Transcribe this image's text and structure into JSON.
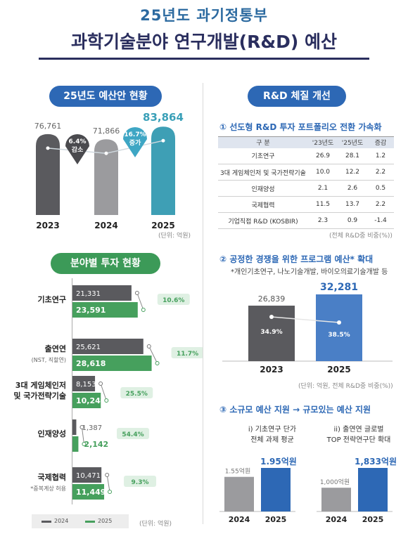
{
  "header": {
    "line1": "25년도 과기정통부",
    "line2": "과학기술분야 연구개발(R&D) 예산"
  },
  "left": {
    "pill1": "25년도 예산안 현황",
    "pill2": "분야별 투자 현황",
    "top_unit": "(단위: 억원)",
    "bottom_unit": "(단위: 억원)",
    "legend": [
      "2024",
      "2025"
    ]
  },
  "right": {
    "pill": "R&D 체질 개선",
    "s1_title": "① 선도형 R&D 투자 포트폴리오 전환 가속화",
    "s1_headers": [
      "구 분",
      "'23년도",
      "'25년도",
      "증감"
    ],
    "s1_note": "(전체 R&D중 비중(%))",
    "s2_title": "② 공정한 경쟁을 위한 프로그램 예산* 확대",
    "s2_note": "*개인기초연구, 나노기술개발, 바이오의료기술개발 등",
    "s2_unit": "(단위: 억원, 전체 R&D중 비중(%))",
    "s3_title": "③ 소규모 예산 지원 → 규모있는 예산 지원",
    "s3_sub_i": [
      "i) 기초연구 단가",
      "전체 과제 평균"
    ],
    "s3_sub_ii": [
      "ii) 출연연 글로벌",
      "TOP 전략연구단 확대"
    ]
  },
  "chart_data": [
    {
      "type": "bar",
      "title": "25년도 예산안 현황",
      "categories": [
        "2023",
        "2024",
        "2025"
      ],
      "values": [
        76761,
        71866,
        83864
      ],
      "labels": [
        "76,761",
        "71,866",
        "83,864"
      ],
      "colors": [
        "#5a5a5e",
        "#9b9b9e",
        "#3e9fb5"
      ],
      "annotations": [
        {
          "lines": [
            "6.4%",
            "감소"
          ],
          "color": "#4a4a4e"
        },
        {
          "lines": [
            "16.7%",
            "증가"
          ],
          "color": "#3ea6c4"
        }
      ]
    },
    {
      "type": "bar",
      "title": "분야별 투자 현황",
      "orientation": "horizontal",
      "series": [
        {
          "name": "2024",
          "color": "#5a5a5e",
          "values": [
            21331,
            25621,
            8153,
            1387,
            10471
          ],
          "labels": [
            "21,331",
            "25,621",
            "8,153",
            "1,387",
            "10,471"
          ]
        },
        {
          "name": "2025",
          "color": "#46a05d",
          "values": [
            23591,
            28618,
            10240,
            2142,
            11449
          ],
          "labels": [
            "23,591",
            "28,618",
            "10,240",
            "2,142",
            "11,449"
          ]
        }
      ],
      "categories": [
        {
          "label": "기초연구",
          "sub": ""
        },
        {
          "label": "출연연",
          "sub": "(NST, 직할연)"
        },
        {
          "label": "3대 게임체인저\n및 국가전략기술",
          "sub": ""
        },
        {
          "label": "인재양성",
          "sub": ""
        },
        {
          "label": "국제협력",
          "sub": "*중복계상 허용"
        }
      ],
      "growth": [
        "10.6%",
        "11.7%",
        "25.5%",
        "54.4%",
        "9.3%"
      ]
    },
    {
      "type": "table",
      "columns": [
        "구 분",
        "'23년도",
        "'25년도",
        "증감"
      ],
      "rows": [
        [
          "기초연구",
          "26.9",
          "28.1",
          "1.2"
        ],
        [
          "3대 게임체인저 및 국가전략기술",
          "10.0",
          "12.2",
          "2.2"
        ],
        [
          "인재양성",
          "2.1",
          "2.6",
          "0.5"
        ],
        [
          "국제협력",
          "11.5",
          "13.7",
          "2.2"
        ],
        [
          "기업직접 R&D (KOSBIR)",
          "2.3",
          "0.9",
          "-1.4"
        ]
      ]
    },
    {
      "type": "bar",
      "categories": [
        "2023",
        "2025"
      ],
      "values": [
        26839,
        32281
      ],
      "labels": [
        "26,839",
        "32,281"
      ],
      "shares": [
        "34.9%",
        "38.5%"
      ],
      "colors": [
        "#5a5a5e",
        "#4a7fc6"
      ]
    },
    {
      "type": "bar",
      "categories": [
        "2024",
        "2025"
      ],
      "values": [
        1.55,
        1.95
      ],
      "labels": [
        "1.55억원",
        "1.95억원"
      ],
      "colors": [
        "#9b9b9e",
        "#2d68b5"
      ]
    },
    {
      "type": "bar",
      "categories": [
        "2024",
        "2025"
      ],
      "values": [
        1000,
        1833
      ],
      "labels": [
        "1,000억원",
        "1,833억원"
      ],
      "colors": [
        "#9b9b9e",
        "#2d68b5"
      ]
    }
  ]
}
